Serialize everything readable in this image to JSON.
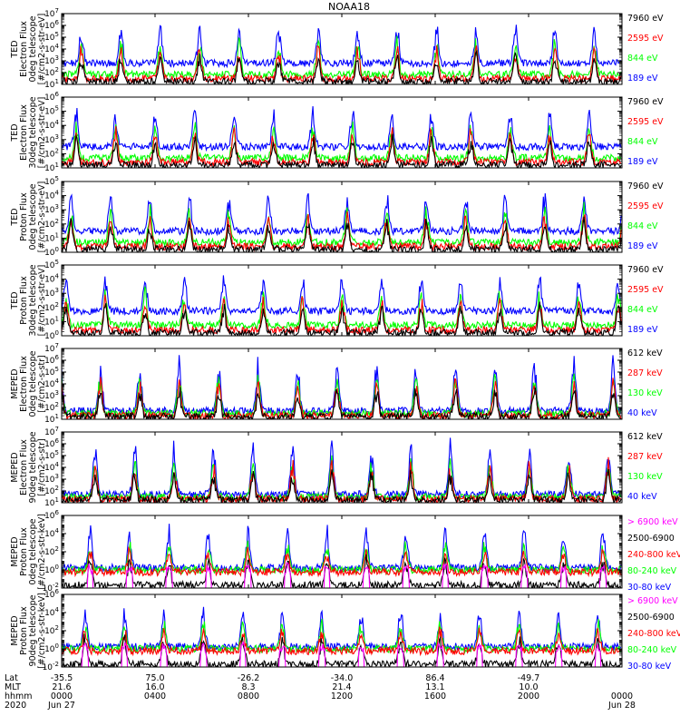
{
  "title": "NOAA18",
  "colors": {
    "blue": "#0000ff",
    "red": "#ff0000",
    "green": "#00ff00",
    "black": "#000000",
    "magenta": "#ff00ff"
  },
  "chart_data": [
    {
      "type": "line",
      "panel": "TED electron 0deg",
      "ylabel": [
        "TED",
        "Electron Flux",
        "0deg telescope",
        "[#/cm2-s-str-eV]"
      ],
      "ylim_exp": [
        1,
        7
      ],
      "tick_exps": [
        1,
        2,
        3,
        4,
        5,
        6,
        7
      ],
      "scale": "log",
      "series": [
        {
          "name": "7960 eV",
          "color": "black"
        },
        {
          "name": "2595 eV",
          "color": "red"
        },
        {
          "name": "844 eV",
          "color": "green"
        },
        {
          "name": "189 eV",
          "color": "blue"
        }
      ]
    },
    {
      "type": "line",
      "panel": "TED electron 30deg",
      "ylabel": [
        "TED",
        "Electron Flux",
        "30deg telescope",
        "[#/cm2-s-str-eV]"
      ],
      "ylim_exp": [
        1,
        6
      ],
      "tick_exps": [
        1,
        2,
        3,
        4,
        5,
        6
      ],
      "scale": "log",
      "series": [
        {
          "name": "7960 eV",
          "color": "black"
        },
        {
          "name": "2595 eV",
          "color": "red"
        },
        {
          "name": "844 eV",
          "color": "green"
        },
        {
          "name": "189 eV",
          "color": "blue"
        }
      ]
    },
    {
      "type": "line",
      "panel": "TED proton 0deg",
      "ylabel": [
        "TED",
        "Proton Flux",
        "0deg telescope",
        "[#/cm2-s-str-eV]"
      ],
      "ylim_exp": [
        0,
        5
      ],
      "tick_exps": [
        0,
        1,
        2,
        3,
        4,
        5
      ],
      "scale": "log",
      "series": [
        {
          "name": "7960 eV",
          "color": "black"
        },
        {
          "name": "2595 eV",
          "color": "red"
        },
        {
          "name": "844 eV",
          "color": "green"
        },
        {
          "name": "189 eV",
          "color": "blue"
        }
      ]
    },
    {
      "type": "line",
      "panel": "TED proton 30deg",
      "ylabel": [
        "TED",
        "Proton Flux",
        "30deg telescope",
        "[#/cm2-s-str-eV]"
      ],
      "ylim_exp": [
        0,
        5
      ],
      "tick_exps": [
        0,
        1,
        2,
        3,
        4,
        5
      ],
      "scale": "log",
      "series": [
        {
          "name": "7960 eV",
          "color": "black"
        },
        {
          "name": "2595 eV",
          "color": "red"
        },
        {
          "name": "844 eV",
          "color": "green"
        },
        {
          "name": "189 eV",
          "color": "blue"
        }
      ]
    },
    {
      "type": "line",
      "panel": "MEPED electron 0deg",
      "ylabel": [
        "MEPED",
        "Electron Flux",
        "0deg telescope",
        "[#/cm2-s-str]"
      ],
      "ylim_exp": [
        1,
        7
      ],
      "tick_exps": [
        1,
        2,
        3,
        4,
        5,
        6,
        7
      ],
      "scale": "log",
      "series": [
        {
          "name": "612 keV",
          "color": "black"
        },
        {
          "name": "287 keV",
          "color": "red"
        },
        {
          "name": "130 keV",
          "color": "green"
        },
        {
          "name": "40 keV",
          "color": "blue"
        }
      ]
    },
    {
      "type": "line",
      "panel": "MEPED electron 90deg",
      "ylabel": [
        "MEPED",
        "Electron Flux",
        "90deg telescope",
        "[#/cm2-s-str]"
      ],
      "ylim_exp": [
        1,
        7
      ],
      "tick_exps": [
        1,
        2,
        3,
        4,
        5,
        6,
        7
      ],
      "scale": "log",
      "series": [
        {
          "name": "612 keV",
          "color": "black"
        },
        {
          "name": "287 keV",
          "color": "red"
        },
        {
          "name": "130 keV",
          "color": "green"
        },
        {
          "name": "40 keV",
          "color": "blue"
        }
      ]
    },
    {
      "type": "line",
      "panel": "MEPED proton 0deg",
      "ylabel": [
        "MEPED",
        "Proton Flux",
        "0deg telescope",
        "[#/cm2-s-str-keV]"
      ],
      "ylim_exp": [
        -2,
        6
      ],
      "tick_exps": [
        -2,
        0,
        2,
        4,
        6
      ],
      "scale": "log",
      "series": [
        {
          "name": "> 6900 keV",
          "color": "magenta"
        },
        {
          "name": "2500-6900",
          "color": "black"
        },
        {
          "name": "240-800 keV",
          "color": "red"
        },
        {
          "name": "80-240 keV",
          "color": "green"
        },
        {
          "name": "30-80 keV",
          "color": "blue"
        }
      ]
    },
    {
      "type": "line",
      "panel": "MEPED proton 90deg",
      "ylabel": [
        "MEPED",
        "Proton Flux",
        "90deg telescope",
        "[#/cm2-s-str-keV]"
      ],
      "ylim_exp": [
        -2,
        6
      ],
      "tick_exps": [
        -2,
        0,
        2,
        4,
        6
      ],
      "scale": "log",
      "series": [
        {
          "name": "> 6900 keV",
          "color": "magenta"
        },
        {
          "name": "2500-6900",
          "color": "black"
        },
        {
          "name": "240-800 keV",
          "color": "red"
        },
        {
          "name": "80-240 keV",
          "color": "green"
        },
        {
          "name": "30-80 keV",
          "color": "blue"
        }
      ]
    }
  ],
  "x_axis": {
    "row_labels": [
      "Lat",
      "MLT",
      "hhmm",
      "2020"
    ],
    "ticks": [
      {
        "lat": "-35.5",
        "mlt": "21.6",
        "hhmm": "0000",
        "date": "Jun 27"
      },
      {
        "lat": "75.0",
        "mlt": "16.0",
        "hhmm": "0400",
        "date": ""
      },
      {
        "lat": "-26.2",
        "mlt": "8.3",
        "hhmm": "0800",
        "date": ""
      },
      {
        "lat": "-34.0",
        "mlt": "21.4",
        "hhmm": "1200",
        "date": ""
      },
      {
        "lat": "86.4",
        "mlt": "13.1",
        "hhmm": "1600",
        "date": ""
      },
      {
        "lat": "-49.7",
        "mlt": "10.0",
        "hhmm": "2000",
        "date": ""
      },
      {
        "lat": "",
        "mlt": "",
        "hhmm": "0000",
        "date": "Jun 28"
      }
    ],
    "hours_range": [
      0,
      24
    ],
    "tick_hours": [
      0,
      4,
      8,
      12,
      16,
      20,
      24
    ]
  }
}
